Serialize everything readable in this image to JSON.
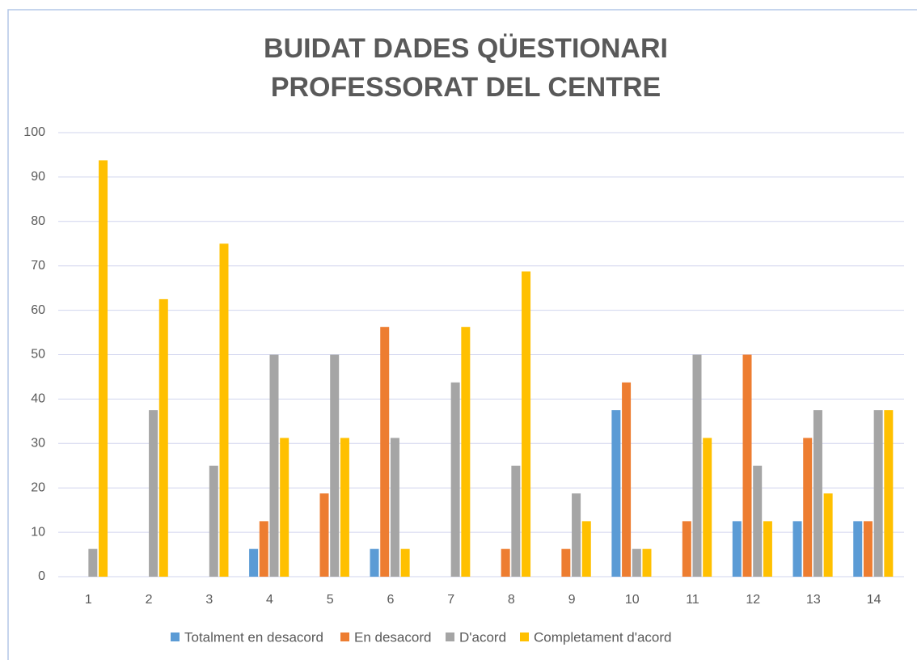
{
  "chart_data": {
    "type": "bar",
    "title": [
      "BUIDAT DADES QÜESTIONARI",
      "PROFESSORAT DEL CENTRE"
    ],
    "categories": [
      "1",
      "2",
      "3",
      "4",
      "5",
      "6",
      "7",
      "8",
      "9",
      "10",
      "11",
      "12",
      "13",
      "14"
    ],
    "series": [
      {
        "name": "Totalment en desacord",
        "color": "#5b9bd5",
        "values": [
          0,
          0,
          0,
          6.25,
          0,
          6.25,
          0,
          0,
          0,
          37.5,
          0,
          12.5,
          12.5,
          12.5
        ]
      },
      {
        "name": "En desacord",
        "color": "#ed7d31",
        "values": [
          0,
          0,
          0,
          12.5,
          18.75,
          56.25,
          0,
          6.25,
          6.25,
          43.75,
          12.5,
          50,
          31.25,
          12.5
        ]
      },
      {
        "name": "D'acord",
        "color": "#a5a5a5",
        "values": [
          6.25,
          37.5,
          25,
          50,
          50,
          31.25,
          43.75,
          25,
          18.75,
          6.25,
          50,
          25,
          37.5,
          37.5
        ]
      },
      {
        "name": "Completament d'acord",
        "color": "#ffc000",
        "values": [
          93.75,
          62.5,
          75,
          31.25,
          31.25,
          6.25,
          56.25,
          68.75,
          12.5,
          6.25,
          31.25,
          12.5,
          18.75,
          37.5
        ]
      }
    ],
    "ylim": [
      0,
      100
    ],
    "yticks": [
      0,
      10,
      20,
      30,
      40,
      50,
      60,
      70,
      80,
      90,
      100
    ],
    "grid": true,
    "legend": "bottom"
  }
}
